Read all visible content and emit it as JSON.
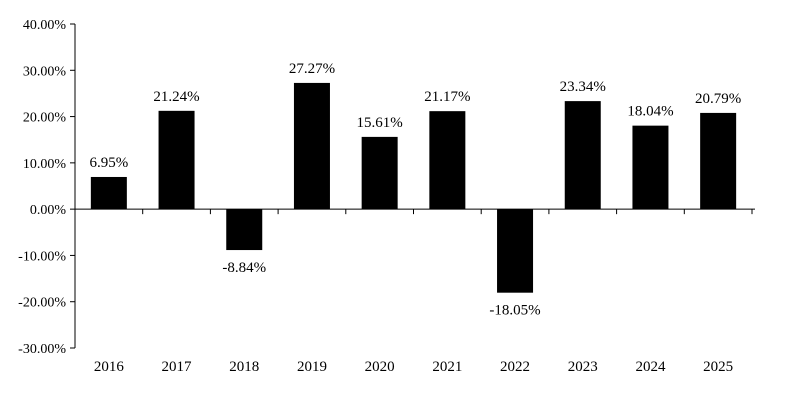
{
  "chart_data": {
    "type": "bar",
    "title": "",
    "xlabel": "",
    "ylabel": "",
    "categories": [
      "2016",
      "2017",
      "2018",
      "2019",
      "2020",
      "2021",
      "2022",
      "2023",
      "2024",
      "2025"
    ],
    "values": [
      6.95,
      21.24,
      -8.84,
      27.27,
      15.61,
      21.17,
      -18.05,
      23.34,
      18.04,
      20.79
    ],
    "value_labels": [
      "6.95%",
      "21.24%",
      "-8.84%",
      "27.27%",
      "15.61%",
      "21.17%",
      "-18.05%",
      "23.34%",
      "18.04%",
      "20.79%"
    ],
    "ylim": [
      -30,
      40
    ],
    "yticks": [
      40,
      30,
      20,
      10,
      0,
      -10,
      -20,
      -30
    ],
    "ytick_labels": [
      "40.00%",
      "30.00%",
      "20.00%",
      "10.00%",
      "0.00%",
      "-10.00%",
      "-20.00%",
      "-30.00%"
    ],
    "grid": false,
    "legend": "none",
    "bar_color": "#000000",
    "axis_color": "#000000"
  }
}
